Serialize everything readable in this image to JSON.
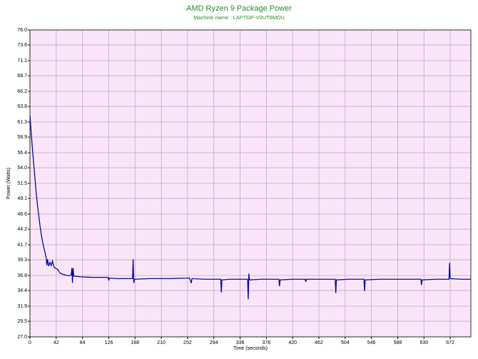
{
  "chart_data": {
    "type": "line",
    "title": "AMD Ryzen 9 Package Power",
    "subtitle": "Machine name : LAPTOP-V0UT8MDU",
    "x_label": "Time (seconds)",
    "y_label": "Power (Watts)",
    "xlim": [
      0,
      705
    ],
    "ylim": [
      27,
      76
    ],
    "xticks": [
      0,
      42,
      84,
      126,
      168,
      210,
      252,
      294,
      336,
      378,
      420,
      462,
      504,
      546,
      588,
      630,
      672
    ],
    "yticks": [
      {
        "value": 27,
        "label": "27.0"
      },
      29.5,
      31.9,
      34.4,
      36.8,
      39.3,
      41.7,
      44.2,
      46.6,
      49.1,
      51.5,
      {
        "value": 54,
        "label": "54.0"
      },
      56.4,
      58.9,
      61.3,
      63.8,
      66.2,
      68.7,
      71.1,
      73.6,
      {
        "value": 76,
        "label": "76.0"
      }
    ],
    "grid": true,
    "background": "#f8e6f8",
    "grid_color": "#c9a6d0",
    "x": [
      0,
      2,
      4,
      6,
      8,
      10,
      12,
      14,
      16,
      18,
      20,
      22,
      24,
      26,
      27,
      28,
      30,
      32,
      34,
      36,
      38,
      40,
      44,
      48,
      52,
      56,
      60,
      64,
      66,
      67,
      68,
      69,
      70,
      80,
      100,
      120,
      125,
      126,
      127,
      140,
      160,
      164,
      165,
      166,
      167,
      190,
      220,
      255,
      258,
      259,
      280,
      305,
      306,
      307,
      320,
      348,
      349,
      350,
      351,
      370,
      398,
      399,
      400,
      420,
      440,
      441,
      442,
      470,
      488,
      489,
      490,
      510,
      534,
      535,
      536,
      560,
      600,
      625,
      626,
      627,
      650,
      670,
      671,
      672,
      690,
      705
    ],
    "series": [
      {
        "name": "Package Power",
        "color": "#0a0a9a",
        "values": [
          62.3,
          59.5,
          57,
          54.6,
          52.3,
          50,
          48,
          46.4,
          44.8,
          43.4,
          42.3,
          41.3,
          40.5,
          39.6,
          38.4,
          39.4,
          38.3,
          38.9,
          38.4,
          39.1,
          38.3,
          38.0,
          37.8,
          37.2,
          37.0,
          36.9,
          36.8,
          36.8,
          36.9,
          38.0,
          35.6,
          38.0,
          36.7,
          36.6,
          36.5,
          36.5,
          36.5,
          36.0,
          36.4,
          36.3,
          36.3,
          36.3,
          39.4,
          35.6,
          36.2,
          36.3,
          36.3,
          36.4,
          35.6,
          36.3,
          36.2,
          36.2,
          34.1,
          36.1,
          36.2,
          36.2,
          33.0,
          37.1,
          36.1,
          36.2,
          36.2,
          35.1,
          36.1,
          36.2,
          36.2,
          35.8,
          36.2,
          36.2,
          36.2,
          34.0,
          36.1,
          36.2,
          36.2,
          34.3,
          36.1,
          36.2,
          36.2,
          36.2,
          35.3,
          36.1,
          36.2,
          36.2,
          38.8,
          36.3,
          36.2,
          36.2
        ]
      }
    ]
  }
}
